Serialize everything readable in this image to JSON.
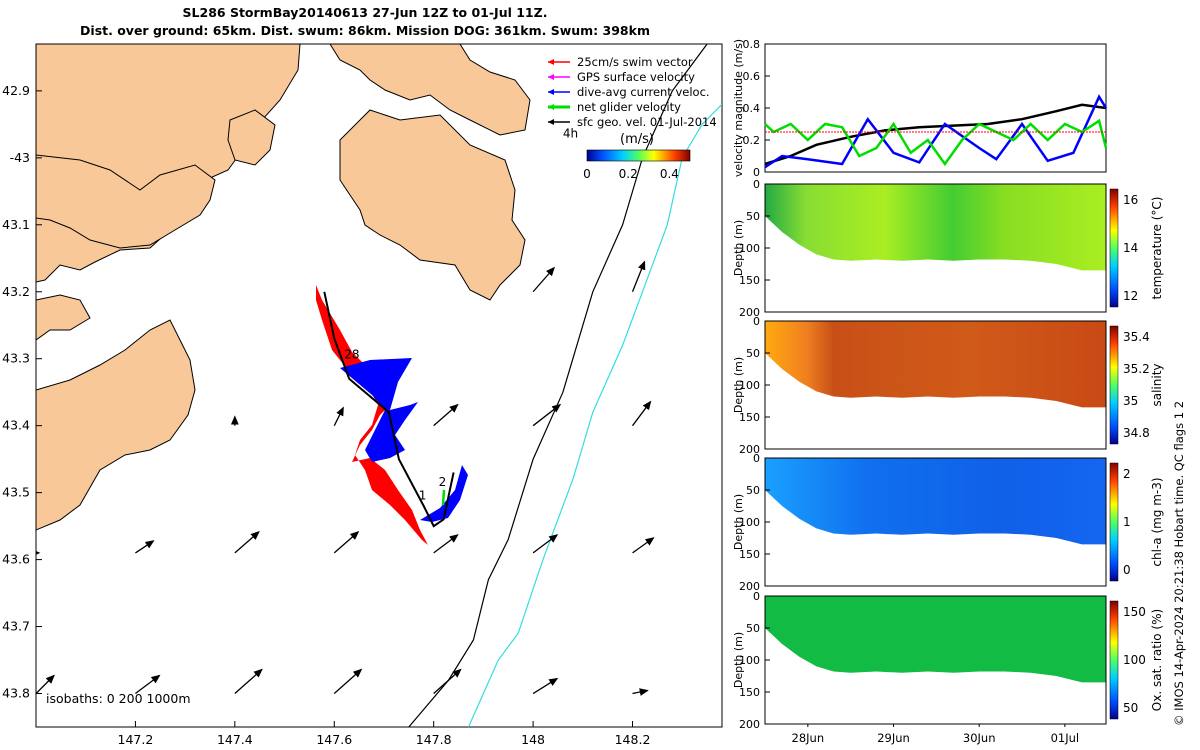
{
  "figure": {
    "title_line1": "SL286 StormBay20140613 27-Jun 12Z to 01-Jul 11Z.",
    "title_line2": "Dist. over ground: 65km. Dist. swum: 86km. Mission DOG: 361km. Swum: 398km",
    "side_note": "© IMOS 14-Apr-2024 20:21:38 Hobart time. QC flags 1  2"
  },
  "colors": {
    "land": "#f8c899",
    "glider_track": "#000000",
    "dive_avg_current": "#0000ff",
    "swim_vector": "#ff0000",
    "net_glider_velocity": "#00dd00",
    "gps_surface_velocity": "#ff00ff",
    "isobath_200": "#000000",
    "isobath_1000": "#33dddd",
    "velocity_magnitude_black": "#000000"
  },
  "chart_data": [
    {
      "type": "map",
      "xlim": [
        147.0,
        148.38
      ],
      "ylim": [
        -43.85,
        -42.83
      ],
      "xticks": [
        147.2,
        147.4,
        147.6,
        147.8,
        148,
        148.2
      ],
      "xtick_labels": [
        "147.2",
        "147.4",
        "147.6",
        "147.8",
        "148",
        "148.2"
      ],
      "yticks": [
        -42.9,
        -43,
        -43.1,
        -43.2,
        -43.3,
        -43.4,
        -43.5,
        -43.6,
        -43.7,
        -43.8
      ],
      "ytick_labels": [
        "42.9",
        "-43",
        "43.1",
        "43.2",
        "43.3",
        "43.4",
        "43.5",
        "43.6",
        "43.7",
        "43.8"
      ],
      "legend": [
        {
          "label": "25cm/s swim vector",
          "color": "#ff0000"
        },
        {
          "label": "GPS surface velocity",
          "color": "#ff00ff"
        },
        {
          "label": "dive-avg current veloc.",
          "color": "#0000ff"
        },
        {
          "label": "net glider velocity",
          "color": "#00dd00"
        },
        {
          "label": "sfc geo. vel. 01-Jul-2014",
          "color": "#000000"
        }
      ],
      "legend_placement": "top-right",
      "colorbar": {
        "label": "(m/s)",
        "ticks": [
          0,
          0.2,
          0.4
        ],
        "tick_labels": [
          "0",
          "0.2",
          "0.4"
        ],
        "range": [
          0,
          0.5
        ]
      },
      "isobaths_label": "isobaths: 0   200   1000m",
      "glider_track": {
        "lon": [
          147.58,
          147.6,
          147.63,
          147.71,
          147.73,
          147.78,
          147.8,
          147.82,
          147.84
        ],
        "lat": [
          -43.2,
          -43.27,
          -43.33,
          -43.38,
          -43.45,
          -43.52,
          -43.55,
          -43.54,
          -43.47
        ]
      },
      "track_labels": [
        {
          "text": "4h",
          "lon": 148.06,
          "lat": -42.97
        },
        {
          "text": "28",
          "lon": 147.62,
          "lat": -43.3
        },
        {
          "text": "1",
          "lon": 147.77,
          "lat": -43.51
        },
        {
          "text": "2",
          "lon": 147.81,
          "lat": -43.49
        }
      ],
      "isobath_200": {
        "lon": [
          147.75,
          147.83,
          147.88,
          147.91,
          147.95,
          148.0,
          148.06,
          148.12,
          148.18,
          148.22,
          148.25,
          148.28,
          148.32,
          148.35
        ],
        "lat": [
          -43.85,
          -43.78,
          -43.72,
          -43.63,
          -43.57,
          -43.45,
          -43.35,
          -43.2,
          -43.1,
          -43.0,
          -42.95,
          -42.9,
          -42.86,
          -42.83
        ]
      },
      "isobath_1000": {
        "lon": [
          147.87,
          147.9,
          147.93,
          147.97,
          148.02,
          148.08,
          148.12,
          148.18,
          148.22,
          148.27,
          148.3,
          148.34,
          148.38
        ],
        "lat": [
          -43.85,
          -43.8,
          -43.75,
          -43.71,
          -43.6,
          -43.48,
          -43.38,
          -43.28,
          -43.2,
          -43.1,
          -43.0,
          -42.95,
          -42.92
        ]
      },
      "sfc_geo_vel_arrows": [
        {
          "lon": 147.2,
          "lat": -43.59,
          "u": 0.3,
          "v": 0.2
        },
        {
          "lon": 147.4,
          "lat": -43.59,
          "u": 0.4,
          "v": 0.35
        },
        {
          "lon": 147.6,
          "lat": -43.59,
          "u": 0.4,
          "v": 0.35
        },
        {
          "lon": 147.8,
          "lat": -43.59,
          "u": 0.4,
          "v": 0.3
        },
        {
          "lon": 148.0,
          "lat": -43.59,
          "u": 0.4,
          "v": 0.3
        },
        {
          "lon": 148.2,
          "lat": -43.59,
          "u": 0.35,
          "v": 0.25
        },
        {
          "lon": 147.0,
          "lat": -43.8,
          "u": 0.3,
          "v": 0.3
        },
        {
          "lon": 147.2,
          "lat": -43.8,
          "u": 0.4,
          "v": 0.3
        },
        {
          "lon": 147.4,
          "lat": -43.8,
          "u": 0.45,
          "v": 0.4
        },
        {
          "lon": 147.6,
          "lat": -43.8,
          "u": 0.45,
          "v": 0.4
        },
        {
          "lon": 147.8,
          "lat": -43.8,
          "u": 0.45,
          "v": 0.4
        },
        {
          "lon": 148.0,
          "lat": -43.8,
          "u": 0.4,
          "v": 0.25
        },
        {
          "lon": 148.2,
          "lat": -43.8,
          "u": 0.25,
          "v": 0.05
        },
        {
          "lon": 147.6,
          "lat": -43.4,
          "u": 0.15,
          "v": 0.3
        },
        {
          "lon": 147.8,
          "lat": -43.4,
          "u": 0.4,
          "v": 0.35
        },
        {
          "lon": 148.0,
          "lat": -43.4,
          "u": 0.45,
          "v": 0.35
        },
        {
          "lon": 148.2,
          "lat": -43.4,
          "u": 0.3,
          "v": 0.4
        },
        {
          "lon": 148.0,
          "lat": -43.2,
          "u": 0.35,
          "v": 0.4
        },
        {
          "lon": 148.2,
          "lat": -43.2,
          "u": 0.2,
          "v": 0.5
        },
        {
          "lon": 147.4,
          "lat": -43.4,
          "u": 0.0,
          "v": 0.15
        },
        {
          "lon": 147.0,
          "lat": -43.59,
          "u": 0.05,
          "v": 0.0
        }
      ]
    },
    {
      "type": "line",
      "ylabel": "velocity magnitude (m/s)",
      "ylim": [
        0,
        0.8
      ],
      "yticks": [
        0,
        0.2,
        0.4,
        0.6,
        0.8
      ],
      "xlim": [
        27.5,
        31.48
      ],
      "series": [
        {
          "color": "#000000",
          "x": [
            27.5,
            27.8,
            28.1,
            28.5,
            28.9,
            29.3,
            29.7,
            30.1,
            30.5,
            30.9,
            31.2,
            31.48
          ],
          "values": [
            0.05,
            0.1,
            0.17,
            0.22,
            0.26,
            0.28,
            0.29,
            0.3,
            0.33,
            0.38,
            0.42,
            0.4
          ]
        },
        {
          "color": "#0000ff",
          "x": [
            27.5,
            27.7,
            28.0,
            28.4,
            28.7,
            29.0,
            29.3,
            29.6,
            30.0,
            30.2,
            30.5,
            30.8,
            31.1,
            31.4,
            31.48
          ],
          "values": [
            0.03,
            0.1,
            0.08,
            0.05,
            0.33,
            0.12,
            0.06,
            0.3,
            0.15,
            0.08,
            0.3,
            0.07,
            0.12,
            0.47,
            0.4
          ]
        },
        {
          "color": "#00dd00",
          "x": [
            27.5,
            27.6,
            27.8,
            28.0,
            28.2,
            28.4,
            28.6,
            28.8,
            29.0,
            29.2,
            29.4,
            29.6,
            29.8,
            30.0,
            30.2,
            30.4,
            30.6,
            30.8,
            31.0,
            31.2,
            31.4,
            31.48
          ],
          "values": [
            0.3,
            0.25,
            0.3,
            0.2,
            0.3,
            0.28,
            0.1,
            0.15,
            0.3,
            0.12,
            0.2,
            0.05,
            0.2,
            0.3,
            0.25,
            0.2,
            0.3,
            0.2,
            0.3,
            0.25,
            0.32,
            0.15
          ]
        },
        {
          "color": "#ff0000",
          "x": [
            27.5,
            31.48
          ],
          "values": [
            0.25,
            0.25
          ]
        }
      ]
    },
    {
      "type": "heatmap",
      "ylabel": "Depth (m)",
      "colorbar_label": "temperature (°C)",
      "colorbar_ticks": [
        "16",
        "14",
        "12"
      ],
      "ylim": [
        0,
        200
      ],
      "yticks": [
        0,
        50,
        100,
        150,
        200
      ]
    },
    {
      "type": "heatmap",
      "ylabel": "Depth (m)",
      "colorbar_label": "salinity",
      "colorbar_ticks": [
        "35.4",
        "35.2",
        "35",
        "34.8"
      ],
      "ylim": [
        0,
        200
      ],
      "yticks": [
        0,
        50,
        100,
        150,
        200
      ]
    },
    {
      "type": "heatmap",
      "ylabel": "Depth (m)",
      "colorbar_label": "chl-a (mg m-3)",
      "colorbar_ticks": [
        "2",
        "1",
        "0"
      ],
      "ylim": [
        0,
        200
      ],
      "yticks": [
        0,
        50,
        100,
        150,
        200
      ]
    },
    {
      "type": "heatmap",
      "ylabel": "Depth (m)",
      "colorbar_label": "Ox. sat. ratio (%)",
      "colorbar_ticks": [
        "150",
        "100",
        "50"
      ],
      "ylim": [
        0,
        200
      ],
      "yticks": [
        0,
        50,
        100,
        150,
        200
      ],
      "xtick_labels": [
        "28Jun",
        "29Jun",
        "30Jun",
        "01Jul"
      ]
    }
  ],
  "bottom_depth": {
    "x": [
      27.5,
      27.7,
      27.9,
      28.1,
      28.3,
      28.5,
      28.8,
      29.1,
      29.4,
      29.7,
      30.0,
      30.3,
      30.6,
      30.9,
      31.2,
      31.48
    ],
    "depth": [
      50,
      75,
      95,
      110,
      118,
      120,
      118,
      120,
      118,
      120,
      118,
      118,
      120,
      125,
      135,
      135
    ]
  }
}
